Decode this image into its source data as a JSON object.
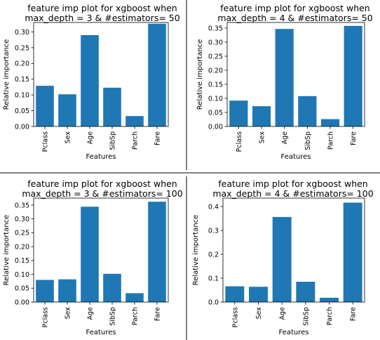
{
  "chart_data": [
    {
      "type": "bar",
      "title": [
        "feature imp plot for xgboost when",
        "max_depth = 3 & #estimators= 50"
      ],
      "xlabel": "Features",
      "ylabel": "Relative importance",
      "categories": [
        "Pclass",
        "Sex",
        "Age",
        "SibSp",
        "Parch",
        "Fare"
      ],
      "values": [
        0.129,
        0.102,
        0.29,
        0.123,
        0.033,
        0.326
      ],
      "ylim": [
        0,
        0.33
      ],
      "yticks": [
        0.0,
        0.05,
        0.1,
        0.15,
        0.2,
        0.25,
        0.3
      ],
      "ytick_decimals": 2,
      "bar_color": "#1f77b4",
      "grid": false
    },
    {
      "type": "bar",
      "title": [
        "feature imp plot for xgboost when",
        "max_depth = 4 & #estimators= 50"
      ],
      "xlabel": "Features",
      "ylabel": "Relative importance",
      "categories": [
        "Pclass",
        "Sex",
        "Age",
        "SibSp",
        "Parch",
        "Fare"
      ],
      "values": [
        0.092,
        0.072,
        0.347,
        0.108,
        0.026,
        0.358
      ],
      "ylim": [
        0,
        0.37
      ],
      "yticks": [
        0.0,
        0.05,
        0.1,
        0.15,
        0.2,
        0.25,
        0.3,
        0.35
      ],
      "ytick_decimals": 2,
      "bar_color": "#1f77b4",
      "grid": false
    },
    {
      "type": "bar",
      "title": [
        "feature imp plot for xgboost when",
        "max_depth = 3 & #estimators= 100"
      ],
      "xlabel": "Features",
      "ylabel": "Relative importance",
      "categories": [
        "Pclass",
        "Sex",
        "Age",
        "SibSp",
        "Parch",
        "Fare"
      ],
      "values": [
        0.08,
        0.082,
        0.344,
        0.102,
        0.032,
        0.362
      ],
      "ylim": [
        0,
        0.375
      ],
      "yticks": [
        0.0,
        0.05,
        0.1,
        0.15,
        0.2,
        0.25,
        0.3,
        0.35
      ],
      "ytick_decimals": 2,
      "bar_color": "#1f77b4",
      "grid": false
    },
    {
      "type": "bar",
      "title": [
        "feature imp plot for xgboost when",
        "max_depth = 4 & #estimators= 100"
      ],
      "xlabel": "Features",
      "ylabel": "Relative importance",
      "categories": [
        "Pclass",
        "Sex",
        "Age",
        "SibSp",
        "Parch",
        "Fare"
      ],
      "values": [
        0.066,
        0.064,
        0.356,
        0.085,
        0.018,
        0.416
      ],
      "ylim": [
        0,
        0.435
      ],
      "yticks": [
        0.0,
        0.1,
        0.2,
        0.3,
        0.4
      ],
      "ytick_decimals": 1,
      "bar_color": "#1f77b4",
      "grid": false
    }
  ]
}
